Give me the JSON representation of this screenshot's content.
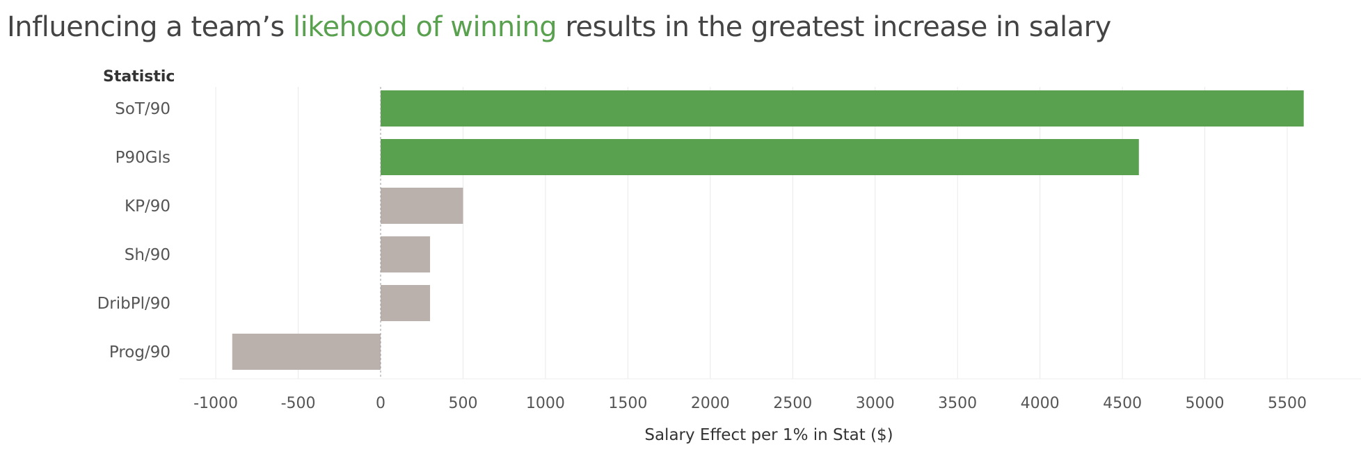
{
  "title": {
    "before": "Influencing a team’s ",
    "highlight": "likehood of winning",
    "after": " results in the greatest increase in salary"
  },
  "colors": {
    "highlight": "#59a14f",
    "neutral": "#bab0ac",
    "grid": "#e8e8e8",
    "text": "#555555"
  },
  "chart_data": {
    "type": "bar",
    "orientation": "horizontal",
    "row_header": "Statistic",
    "xlabel": "Salary Effect per 1% in Stat ($)",
    "xlim": [
      -1200,
      5600
    ],
    "xticks": [
      -1000,
      -500,
      0,
      500,
      1000,
      1500,
      2000,
      2500,
      3000,
      3500,
      4000,
      4500,
      5000,
      5500
    ],
    "grid": true,
    "categories": [
      "SoT/90",
      "P90Gls",
      "KP/90",
      "Sh/90",
      "DribPl/90",
      "Prog/90"
    ],
    "values": [
      5600,
      4600,
      500,
      300,
      300,
      -900
    ],
    "highlighted": [
      true,
      true,
      false,
      false,
      false,
      false
    ]
  }
}
